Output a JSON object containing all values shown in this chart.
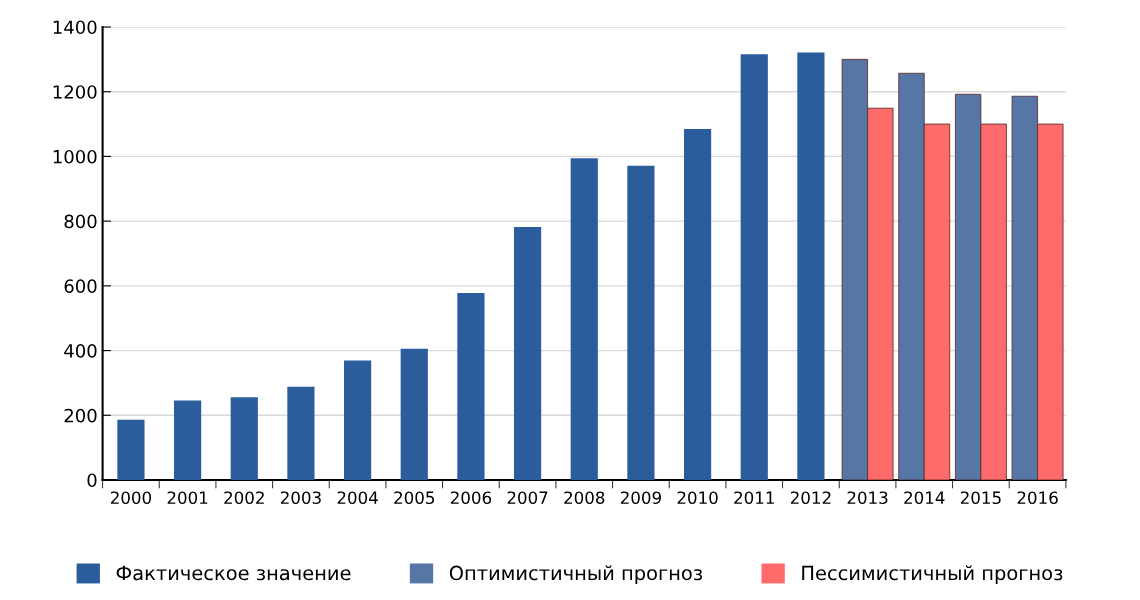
{
  "chart_data": {
    "type": "bar",
    "categories": [
      "2000",
      "2001",
      "2002",
      "2003",
      "2004",
      "2005",
      "2006",
      "2007",
      "2008",
      "2009",
      "2010",
      "2011",
      "2012",
      "2013",
      "2014",
      "2015",
      "2016"
    ],
    "series": [
      {
        "name": "Фактическое значение",
        "color": "#2b5c9b",
        "values": [
          186,
          246,
          256,
          288,
          369,
          406,
          578,
          782,
          994,
          971,
          1085,
          1316,
          1321,
          null,
          null,
          null,
          null
        ]
      },
      {
        "name": "Оптимистичный прогноз",
        "color": "#5677a6",
        "values": [
          null,
          null,
          null,
          null,
          null,
          null,
          null,
          null,
          null,
          null,
          null,
          null,
          null,
          1300,
          1257,
          1192,
          1186
        ]
      },
      {
        "name": "Пессимистичный прогноз",
        "color": "#ff6b6b",
        "values": [
          null,
          null,
          null,
          null,
          null,
          null,
          null,
          null,
          null,
          null,
          null,
          null,
          null,
          1149,
          1100,
          1100,
          1100
        ]
      }
    ],
    "ylim": [
      0,
      1400
    ],
    "yticks": [
      0,
      200,
      400,
      600,
      800,
      1000,
      1200,
      1400
    ],
    "grid": "y",
    "legend": "bottom"
  }
}
